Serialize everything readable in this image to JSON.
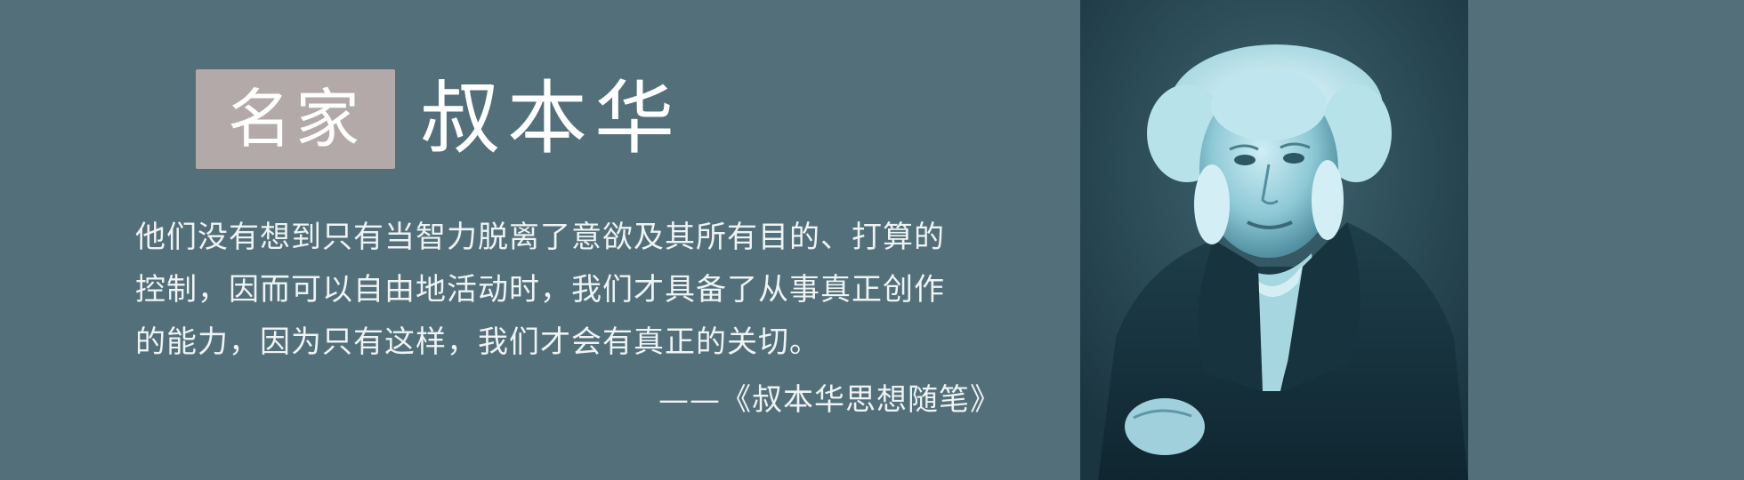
{
  "badge": {
    "label": "名家"
  },
  "title": {
    "name": "叔本华"
  },
  "quote": {
    "lines": [
      "他们没有想到只有当智力脱离了意欲及其所有目的、打算的",
      "控制，因而可以自由地活动时，我们才具备了从事真正创作",
      "的能力，因为只有这样，我们才会有真正的关切。"
    ],
    "source": "——《叔本华思想随笔》"
  },
  "colors": {
    "background": "#536f79",
    "badge": "#b3a9a9",
    "text": "#ffffff",
    "portrait_tint": "#6fb6c6"
  },
  "portrait": {
    "icon": "portrait-image"
  }
}
